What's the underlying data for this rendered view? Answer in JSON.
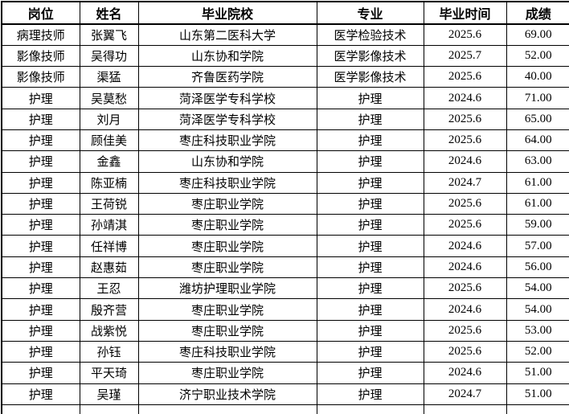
{
  "table": {
    "columns": [
      {
        "key": "position",
        "label": "岗位"
      },
      {
        "key": "name",
        "label": "姓名"
      },
      {
        "key": "school",
        "label": "毕业院校"
      },
      {
        "key": "major",
        "label": "专业"
      },
      {
        "key": "grad_time",
        "label": "毕业时间"
      },
      {
        "key": "score",
        "label": "成绩"
      }
    ],
    "rows": [
      [
        "病理技师",
        "张翼飞",
        "山东第二医科大学",
        "医学检验技术",
        "2025.6",
        "69.00"
      ],
      [
        "影像技师",
        "吴得功",
        "山东协和学院",
        "医学影像技术",
        "2025.7",
        "52.00"
      ],
      [
        "影像技师",
        "渠猛",
        "齐鲁医药学院",
        "医学影像技术",
        "2025.6",
        "40.00"
      ],
      [
        "护理",
        "吴莫愁",
        "菏泽医学专科学校",
        "护理",
        "2024.6",
        "71.00"
      ],
      [
        "护理",
        "刘月",
        "菏泽医学专科学校",
        "护理",
        "2025.6",
        "65.00"
      ],
      [
        "护理",
        "顾佳美",
        "枣庄科技职业学院",
        "护理",
        "2025.6",
        "64.00"
      ],
      [
        "护理",
        "金鑫",
        "山东协和学院",
        "护理",
        "2024.6",
        "63.00"
      ],
      [
        "护理",
        "陈亚楠",
        "枣庄科技职业学院",
        "护理",
        "2024.7",
        "61.00"
      ],
      [
        "护理",
        "王荷锐",
        "枣庄职业学院",
        "护理",
        "2025.6",
        "61.00"
      ],
      [
        "护理",
        "孙靖淇",
        "枣庄职业学院",
        "护理",
        "2025.6",
        "59.00"
      ],
      [
        "护理",
        "任祥博",
        "枣庄职业学院",
        "护理",
        "2024.6",
        "57.00"
      ],
      [
        "护理",
        "赵惠茹",
        "枣庄职业学院",
        "护理",
        "2024.6",
        "56.00"
      ],
      [
        "护理",
        "王忍",
        "潍坊护理职业学院",
        "护理",
        "2025.6",
        "54.00"
      ],
      [
        "护理",
        "殷齐营",
        "枣庄职业学院",
        "护理",
        "2024.6",
        "54.00"
      ],
      [
        "护理",
        "战紫悦",
        "枣庄职业学院",
        "护理",
        "2025.6",
        "53.00"
      ],
      [
        "护理",
        "孙钰",
        "枣庄科技职业学院",
        "护理",
        "2025.6",
        "52.00"
      ],
      [
        "护理",
        "平天琦",
        "枣庄职业学院",
        "护理",
        "2024.6",
        "51.00"
      ],
      [
        "护理",
        "吴瑾",
        "济宁职业技术学院",
        "护理",
        "2024.7",
        "51.00"
      ]
    ],
    "colors": {
      "border": "#000000",
      "text": "#000000",
      "background": "#ffffff"
    }
  }
}
